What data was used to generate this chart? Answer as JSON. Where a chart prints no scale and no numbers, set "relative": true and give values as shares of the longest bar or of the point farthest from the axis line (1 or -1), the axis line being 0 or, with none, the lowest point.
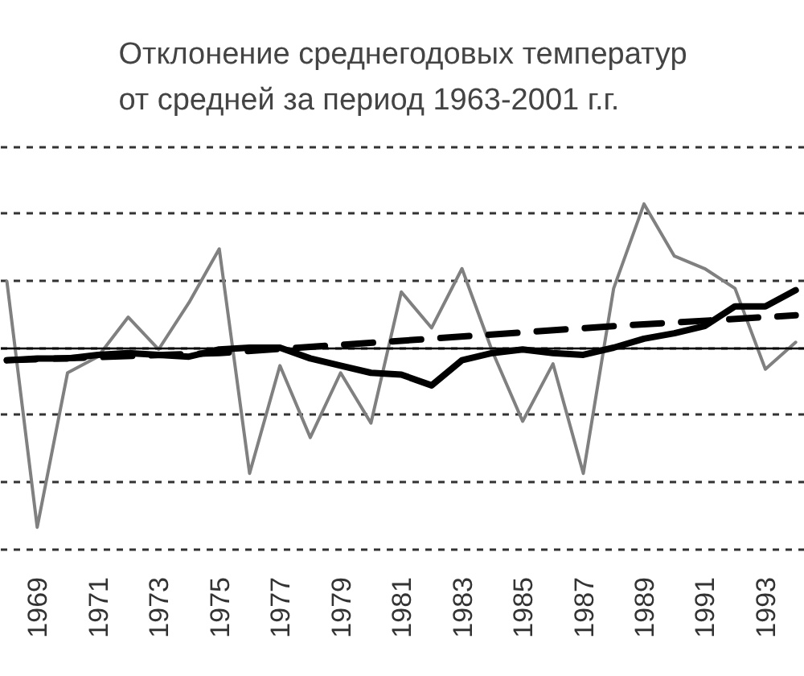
{
  "chart_data": {
    "type": "line",
    "title": "Отклонение среднегодовых температур\nот средней за период 1963-2001 г.г.",
    "relative": true,
    "x": [
      1968,
      1969,
      1970,
      1971,
      1972,
      1973,
      1974,
      1975,
      1976,
      1977,
      1978,
      1979,
      1980,
      1981,
      1982,
      1983,
      1984,
      1985,
      1986,
      1987,
      1988,
      1989,
      1990,
      1991,
      1992,
      1993,
      1994
    ],
    "xlim": [
      1967.8,
      1994.3
    ],
    "xticks": [
      1969,
      1971,
      1973,
      1975,
      1977,
      1979,
      1981,
      1983,
      1985,
      1987,
      1989,
      1991,
      1993
    ],
    "grid": "y",
    "series": [
      {
        "color": "#808080",
        "values": [
          0.37,
          -1,
          -0.14,
          -0.05,
          0.17,
          -0.01,
          0.25,
          0.55,
          -0.7,
          -0.1,
          -0.5,
          -0.14,
          -0.42,
          0.31,
          0.11,
          0.44,
          -0.02,
          -0.41,
          -0.09,
          -0.7,
          0.33,
          0.8,
          0.51,
          0.44,
          0.33,
          -0.12,
          0.03
        ]
      },
      {
        "color": "#000000",
        "values": [
          -0.07,
          -0.06,
          -0.06,
          -0.04,
          -0.03,
          -0.04,
          -0.05,
          -0.01,
          0.0,
          0.0,
          -0.06,
          -0.1,
          -0.14,
          -0.15,
          -0.21,
          -0.07,
          -0.03,
          -0.01,
          -0.03,
          -0.04,
          0.0,
          0.05,
          0.08,
          0.12,
          0.23,
          0.23,
          0.32
        ]
      },
      {
        "type": "line",
        "color": "#000000",
        "line_style": "dashed",
        "x": [
          1968,
          1975,
          1982,
          1988,
          1994
        ],
        "values": [
          -0.07,
          -0.03,
          0.05,
          0.12,
          0.18
        ]
      }
    ]
  }
}
